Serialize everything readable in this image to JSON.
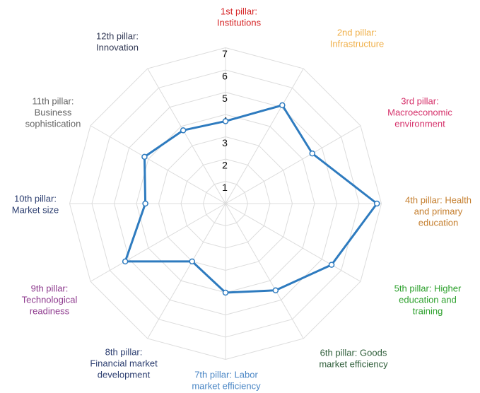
{
  "chart_data": {
    "type": "radar",
    "categories": [
      [
        "1st pillar:",
        "Institutions"
      ],
      [
        "2nd pillar:",
        "Infrastructure"
      ],
      [
        "3rd pillar:",
        "Macroeconomic",
        "environment"
      ],
      [
        "4th pillar: Health",
        "and primary",
        "education"
      ],
      [
        "5th pillar: Higher",
        "education and",
        "training"
      ],
      [
        "6th pillar: Goods",
        "market efficiency"
      ],
      [
        "7th pillar: Labor",
        "market efficiency"
      ],
      [
        "8th pillar:",
        "Financial market",
        "development"
      ],
      [
        "9th pillar:",
        "Technological",
        "readiness"
      ],
      [
        "10th pillar:",
        "Market size"
      ],
      [
        "11th pillar:",
        "Business",
        "sophistication"
      ],
      [
        "12th pillar:",
        "Innovation"
      ]
    ],
    "category_colors": [
      "#d62728",
      "#f0b04a",
      "#d6336c",
      "#c57f2f",
      "#2ca02c",
      "#2f5e3a",
      "#4a86c5",
      "#2c3e70",
      "#8e3a8e",
      "#2c3e70",
      "#666666",
      "#333a56"
    ],
    "values": [
      3.7,
      5.1,
      4.5,
      6.8,
      5.5,
      4.5,
      4.0,
      3.0,
      5.2,
      3.6,
      4.2,
      3.8
    ],
    "color": "#2e7bbf",
    "ylim": [
      0,
      7
    ],
    "yticks": [
      1,
      2,
      3,
      4,
      5,
      6,
      7
    ],
    "grid": true
  }
}
